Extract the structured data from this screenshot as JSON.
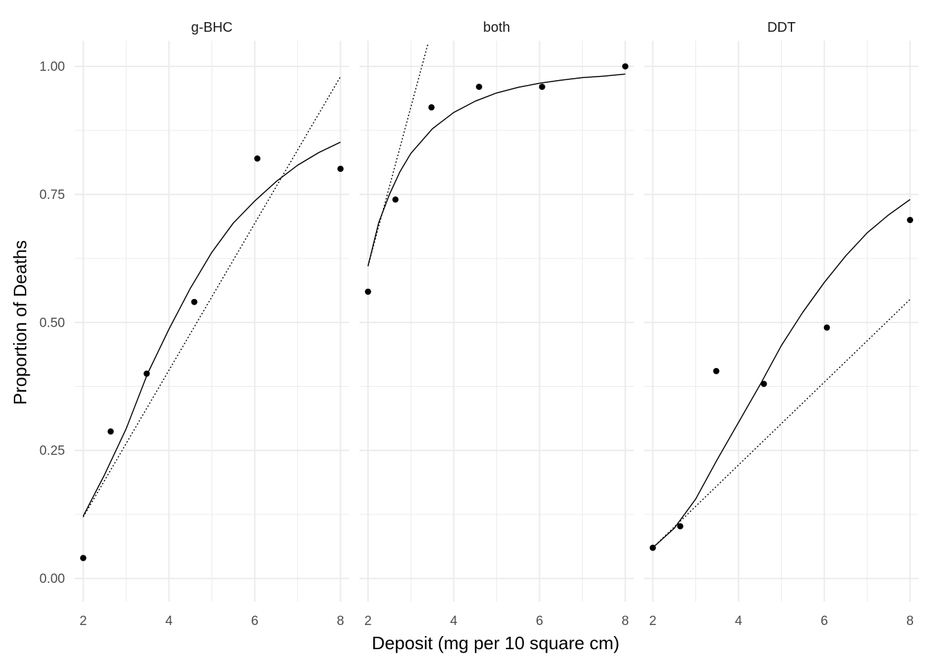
{
  "chart_data": {
    "type": "scatter",
    "xlabel": "Deposit (mg per 10 square cm)",
    "ylabel": "Proportion of Deaths",
    "xlim": [
      1.8,
      8.2
    ],
    "ylim": [
      -0.045,
      1.05
    ],
    "x_ticks": [
      2,
      4,
      6,
      8
    ],
    "x_tick_labels": [
      "2",
      "4",
      "6",
      "8"
    ],
    "y_ticks": [
      0,
      0.25,
      0.5,
      0.75,
      1
    ],
    "y_tick_labels": [
      "0.00",
      "0.25",
      "0.50",
      "0.75",
      "1.00"
    ],
    "grid": true,
    "legend": "none",
    "facets": [
      {
        "label": "g-BHC",
        "points": {
          "x": [
            2.0,
            2.64,
            3.48,
            4.59,
            6.06,
            8.0
          ],
          "y": [
            0.04,
            0.287,
            0.4,
            0.54,
            0.82,
            0.8
          ]
        },
        "fit_logistic": {
          "x": [
            2.0,
            2.5,
            3.0,
            3.5,
            4.0,
            4.5,
            5.0,
            5.5,
            6.0,
            6.5,
            7.0,
            7.5,
            8.0
          ],
          "y": [
            0.122,
            0.203,
            0.292,
            0.4,
            0.487,
            0.567,
            0.637,
            0.694,
            0.737,
            0.775,
            0.807,
            0.832,
            0.852
          ]
        },
        "fit_linear": {
          "x": [
            2.0,
            8.0
          ],
          "y": [
            0.12,
            0.98
          ]
        }
      },
      {
        "label": "both",
        "points": {
          "x": [
            2.0,
            2.64,
            3.48,
            4.59,
            6.06,
            8.0
          ],
          "y": [
            0.56,
            0.74,
            0.92,
            0.96,
            0.96,
            1.0
          ]
        },
        "fit_logistic": {
          "x": [
            2.0,
            2.25,
            2.5,
            2.75,
            3.0,
            3.5,
            4.0,
            4.5,
            5.0,
            5.5,
            6.0,
            6.5,
            7.0,
            7.5,
            8.0
          ],
          "y": [
            0.61,
            0.695,
            0.75,
            0.795,
            0.83,
            0.878,
            0.91,
            0.932,
            0.948,
            0.959,
            0.967,
            0.973,
            0.978,
            0.981,
            0.985
          ]
        },
        "fit_linear": {
          "x": [
            2.0,
            3.4
          ],
          "y": [
            0.61,
            1.045
          ]
        }
      },
      {
        "label": "DDT",
        "points": {
          "x": [
            2.0,
            2.64,
            3.48,
            4.59,
            6.06,
            8.0
          ],
          "y": [
            0.06,
            0.102,
            0.405,
            0.38,
            0.49,
            0.7
          ]
        },
        "fit_logistic": {
          "x": [
            2.0,
            2.5,
            3.0,
            3.5,
            4.0,
            4.5,
            5.0,
            5.5,
            6.0,
            6.5,
            7.0,
            7.5,
            8.0
          ],
          "y": [
            0.06,
            0.098,
            0.155,
            0.232,
            0.305,
            0.378,
            0.455,
            0.52,
            0.578,
            0.63,
            0.675,
            0.71,
            0.74
          ]
        },
        "fit_linear": {
          "x": [
            2.0,
            8.0
          ],
          "y": [
            0.06,
            0.545
          ]
        }
      }
    ]
  }
}
